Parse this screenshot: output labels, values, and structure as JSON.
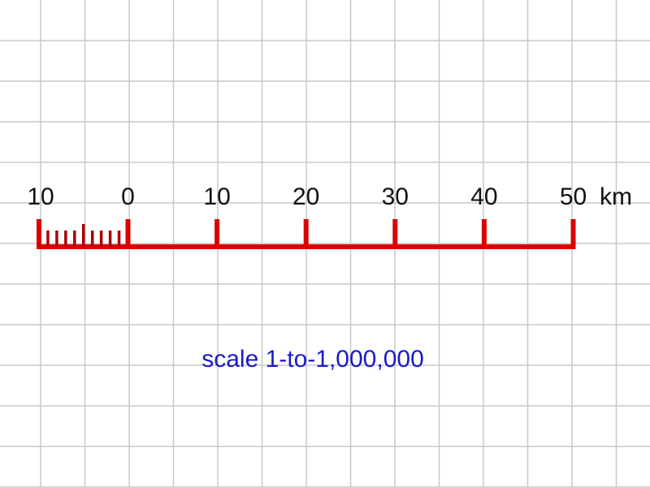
{
  "scale_bar": {
    "left_label": "10",
    "tick_labels": [
      "0",
      "10",
      "20",
      "30",
      "40",
      "50"
    ],
    "unit": "km",
    "subdivisions": 10,
    "bar_color": "#dd0000",
    "sub_tick_color": "#aa0000"
  },
  "caption": {
    "text": "scale 1-to-1,000,000",
    "color": "#1a1acc"
  },
  "grid": {
    "shown": true,
    "color": "#c8c8c8"
  }
}
